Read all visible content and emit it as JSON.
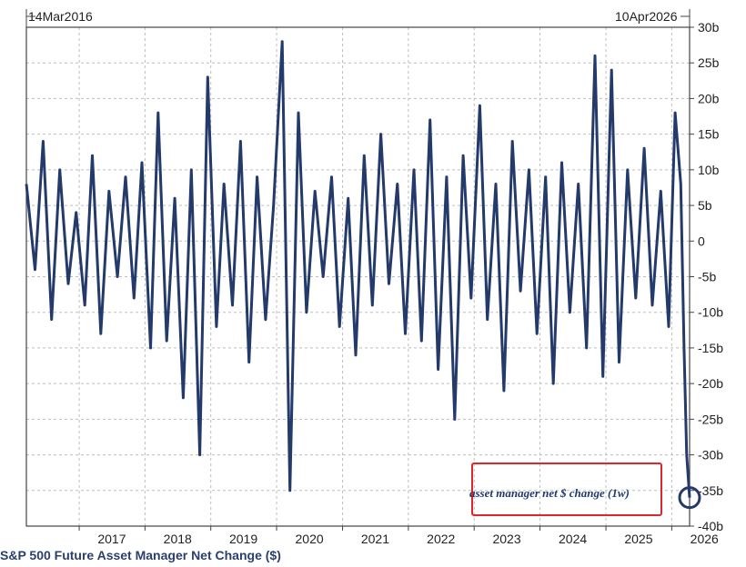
{
  "chart_data": {
    "type": "line",
    "title": "S&P 500 Future Asset Manager Net Change ($)",
    "start_label": "14Mar2016",
    "end_label": "10Apr2026",
    "annotation": "asset manager net $ change (1w)",
    "x_start": "2016-03-14",
    "x_end": "2026-04-10",
    "ylim": [
      -40,
      30
    ],
    "y_ticks": [
      30,
      25,
      20,
      15,
      10,
      5,
      0,
      -5,
      -10,
      -15,
      -20,
      -25,
      -30,
      -35,
      -40
    ],
    "y_tick_labels": [
      "30b",
      "25b",
      "20b",
      "15b",
      "10b",
      "5b",
      "0",
      "-5b",
      "-10b",
      "-15b",
      "-20b",
      "-25b",
      "-30b",
      "-35b",
      "-40b"
    ],
    "x_ticks": [
      "2017",
      "2018",
      "2019",
      "2020",
      "2021",
      "2022",
      "2023",
      "2024",
      "2025",
      "2026"
    ],
    "grid": true,
    "line_color": "#233a6b",
    "annotation_box_color": "#e0262b",
    "highlight_circle_color": "#233a6b",
    "series": [
      {
        "x": [
          "2016-03-14",
          "2016-05-01",
          "2016-06-15",
          "2016-08-01",
          "2016-09-15",
          "2016-11-01",
          "2016-12-15",
          "2017-02-01",
          "2017-03-15",
          "2017-05-01",
          "2017-06-15",
          "2017-08-01",
          "2017-09-15",
          "2017-11-01",
          "2017-12-15",
          "2018-02-01",
          "2018-03-15",
          "2018-05-01",
          "2018-06-15",
          "2018-08-01",
          "2018-09-15",
          "2018-11-01",
          "2018-12-15",
          "2019-02-01",
          "2019-03-15",
          "2019-05-01",
          "2019-06-15",
          "2019-08-01",
          "2019-09-15",
          "2019-11-01",
          "2019-12-15",
          "2020-02-01",
          "2020-03-15",
          "2020-05-01",
          "2020-06-15",
          "2020-08-01",
          "2020-09-15",
          "2020-11-01",
          "2020-12-15",
          "2021-02-01",
          "2021-03-15",
          "2021-05-01",
          "2021-06-15",
          "2021-08-01",
          "2021-09-15",
          "2021-11-01",
          "2021-12-15",
          "2022-02-01",
          "2022-03-15",
          "2022-05-01",
          "2022-06-15",
          "2022-08-01",
          "2022-09-15",
          "2022-11-01",
          "2022-12-15",
          "2023-02-01",
          "2023-03-15",
          "2023-05-01",
          "2023-06-15",
          "2023-08-01",
          "2023-09-15",
          "2023-11-01",
          "2023-12-15",
          "2024-02-01",
          "2024-03-15",
          "2024-05-01",
          "2024-06-15",
          "2024-08-01",
          "2024-09-15",
          "2024-11-01",
          "2024-12-15",
          "2025-02-01",
          "2025-03-15",
          "2025-05-01",
          "2025-06-15",
          "2025-08-01",
          "2025-09-15",
          "2025-11-01",
          "2025-12-15",
          "2026-01-20",
          "2026-02-20",
          "2026-03-10",
          "2026-03-25",
          "2026-04-10"
        ],
        "values": [
          8,
          -4,
          14,
          -11,
          10,
          -6,
          4,
          -9,
          12,
          -13,
          7,
          -5,
          9,
          -8,
          11,
          -15,
          18,
          -14,
          6,
          -22,
          10,
          -30,
          23,
          -12,
          8,
          -9,
          14,
          -17,
          9,
          -11,
          5,
          28,
          -35,
          18,
          -10,
          7,
          -5,
          9,
          -12,
          6,
          -16,
          12,
          -9,
          15,
          -6,
          8,
          -13,
          10,
          -14,
          17,
          -18,
          9,
          -25,
          12,
          -8,
          19,
          -11,
          8,
          -21,
          14,
          -7,
          10,
          -13,
          9,
          -20,
          11,
          -10,
          8,
          -15,
          26,
          -19,
          24,
          -17,
          10,
          -8,
          13,
          -9,
          7,
          -12,
          18,
          8,
          -15,
          -30,
          -36
        ]
      }
    ]
  }
}
